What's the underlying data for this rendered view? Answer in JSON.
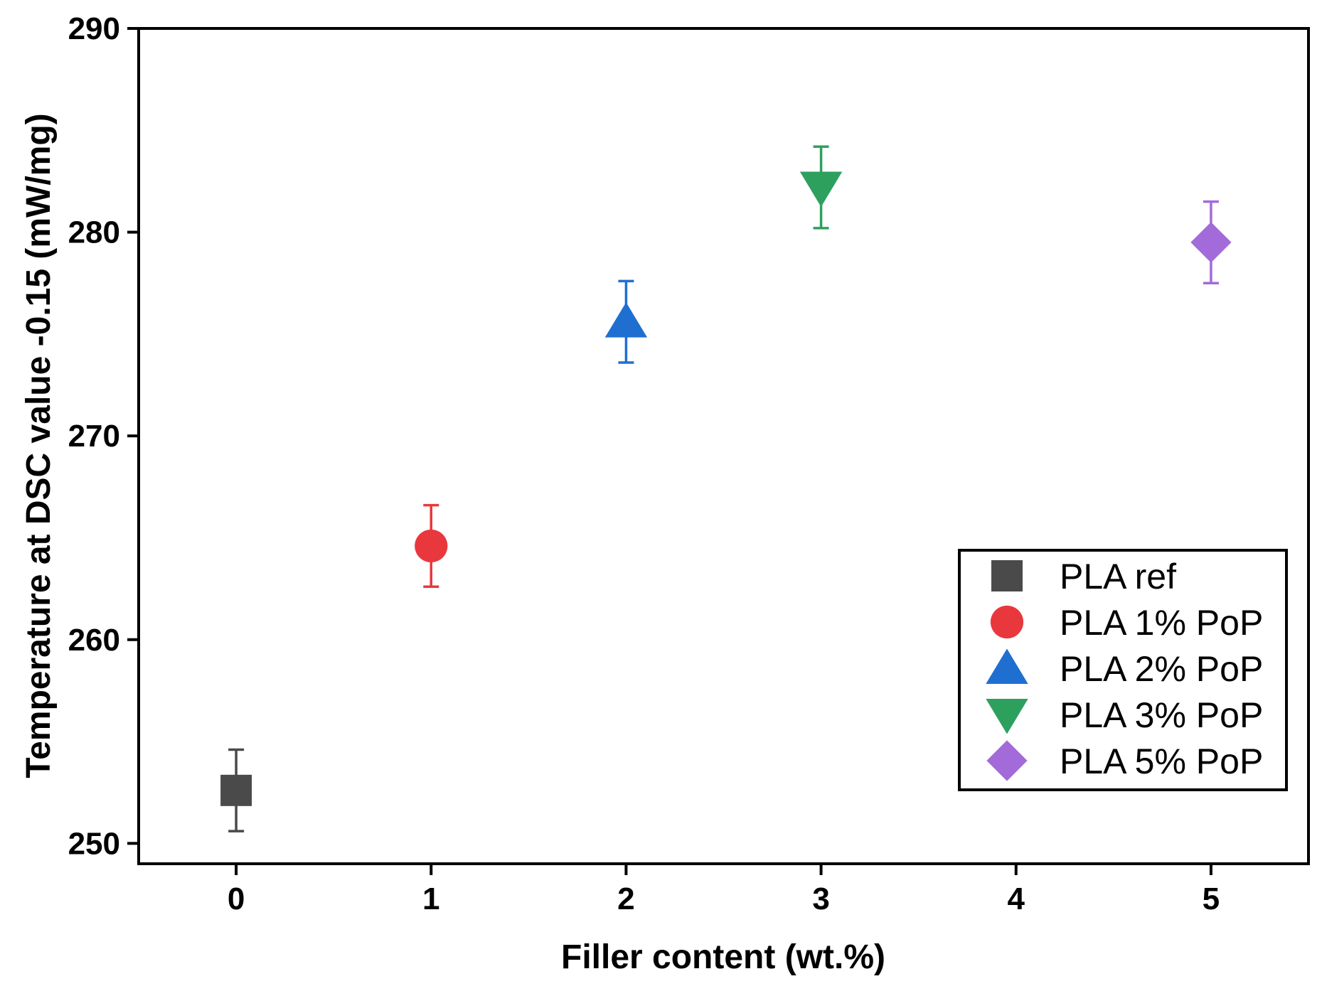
{
  "chart_data": {
    "type": "scatter",
    "title": "",
    "xlabel": "Filler content (wt.%)",
    "ylabel": "Temperature at DSC value -0.15 (mW/mg)",
    "xlim": [
      -0.5,
      5.5
    ],
    "ylim": [
      249,
      290
    ],
    "xticks": [
      0,
      1,
      2,
      3,
      4,
      5
    ],
    "yticks": [
      250,
      260,
      270,
      280,
      290
    ],
    "xtick_labels": [
      "0",
      "1",
      "2",
      "3",
      "4",
      "5"
    ],
    "ytick_labels": [
      "250",
      "260",
      "270",
      "280",
      "290"
    ],
    "grid": false,
    "legend_position": "bottom-right",
    "series": [
      {
        "name": "PLA ref",
        "x": 0,
        "y": 252.6,
        "error": 2.0,
        "marker": "square",
        "color": "#4a4a4a"
      },
      {
        "name": "PLA 1% PoP",
        "x": 1,
        "y": 264.6,
        "error": 2.0,
        "marker": "circle",
        "color": "#e8383d"
      },
      {
        "name": "PLA 2% PoP",
        "x": 2,
        "y": 275.6,
        "error": 2.0,
        "marker": "triangle-up",
        "color": "#1f6fd1"
      },
      {
        "name": "PLA 3% PoP",
        "x": 3,
        "y": 282.2,
        "error": 2.0,
        "marker": "triangle-down",
        "color": "#2ea05e"
      },
      {
        "name": "PLA 5% PoP",
        "x": 5,
        "y": 279.5,
        "error": 2.0,
        "marker": "diamond",
        "color": "#a26bd9"
      }
    ]
  }
}
